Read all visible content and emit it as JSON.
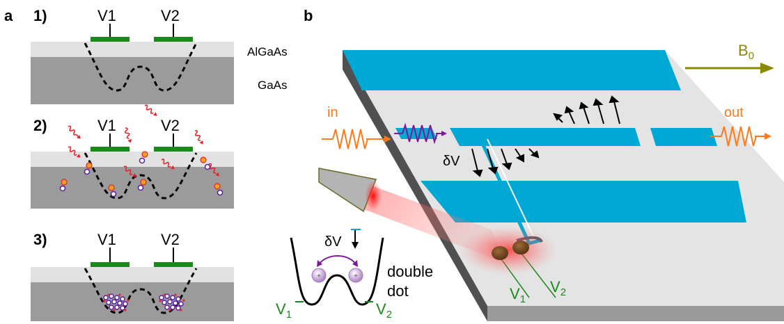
{
  "panel_a": {
    "label": "a",
    "steps": [
      {
        "number": "1)",
        "gate_left": "V1",
        "gate_right": "V2"
      },
      {
        "number": "2)",
        "gate_left": "V1",
        "gate_right": "V2"
      },
      {
        "number": "3)",
        "gate_left": "V1",
        "gate_right": "V2"
      }
    ],
    "layers": {
      "top": "AlGaAs",
      "bottom": "GaAs"
    }
  },
  "panel_b": {
    "label": "b",
    "field_label": "B",
    "field_subscript": "0",
    "input_label": "in",
    "output_label": "out",
    "voltage_label": "δV",
    "gate1_label": "V",
    "gate1_sub": "1",
    "gate2_label": "V",
    "gate2_sub": "2",
    "inset": {
      "voltage_label": "δV",
      "title_line1": "double",
      "title_line2": "dot",
      "left_gate": "V",
      "left_gate_sub": "1",
      "right_gate": "V",
      "right_gate_sub": "2"
    }
  },
  "colors": {
    "gate_green": "#1a8a1a",
    "channel_blue": "#00a8d4",
    "field_olive": "#8a8a00",
    "wave_orange": "#ff7a1a",
    "wave_purple": "#7a1a9a",
    "laser_red": "#e8222a"
  }
}
